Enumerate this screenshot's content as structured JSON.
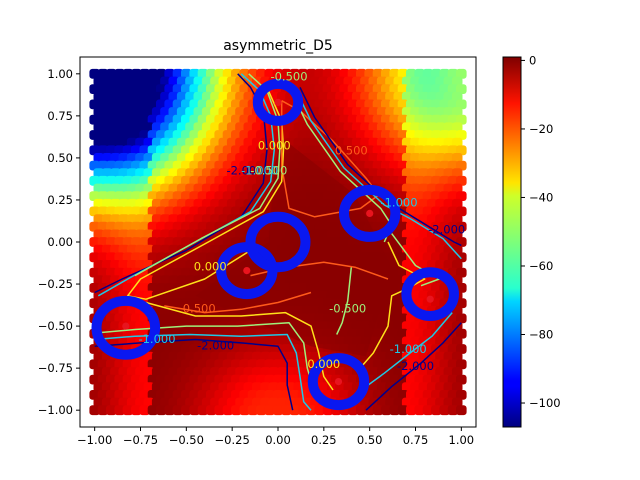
{
  "chart_data": {
    "type": "heatmap",
    "title": "asymmetric_D5",
    "xlabel": "",
    "ylabel": "",
    "xlim": [
      -1.08,
      1.08
    ],
    "ylim": [
      -1.1,
      1.1
    ],
    "x_ticks": [
      -1.0,
      -0.75,
      -0.5,
      -0.25,
      0.0,
      0.25,
      0.5,
      0.75,
      1.0
    ],
    "x_tick_labels": [
      "−1.00",
      "−0.75",
      "−0.50",
      "−0.25",
      "0.00",
      "0.25",
      "0.50",
      "0.75",
      "1.00"
    ],
    "y_ticks": [
      1.0,
      0.75,
      0.5,
      0.25,
      0.0,
      -0.25,
      -0.5,
      -0.75,
      -1.0
    ],
    "y_tick_labels": [
      "1.00",
      "0.75",
      "0.50",
      "0.25",
      "0.00",
      "−0.25",
      "−0.50",
      "−0.75",
      "−1.00"
    ],
    "grid": false,
    "colormap": "jet",
    "colorbar": {
      "range": [
        -107,
        1
      ],
      "ticks": [
        0,
        -20,
        -40,
        -60,
        -80,
        -100
      ],
      "tick_labels": [
        "0",
        "−20",
        "−40",
        "−60",
        "−80",
        "−100"
      ]
    },
    "contour_levels": [
      -2.0,
      -1.0,
      -0.5,
      0.0,
      0.5
    ],
    "contour_colors": {
      "-2.0": "#00008b",
      "-1.0": "#1fc8e6",
      "-0.5": "#9ff07a",
      "0.0": "#ffe11a",
      "0.5": "#ff5a1a"
    },
    "contour_labels": [
      {
        "text": "-2.000",
        "x": -0.18,
        "y": 0.4,
        "level": -2.0
      },
      {
        "text": "-1.000",
        "x": -0.1,
        "y": 0.4,
        "level": -1.0
      },
      {
        "text": "-0.500",
        "x": -0.05,
        "y": 0.4,
        "level": -0.5
      },
      {
        "text": "0.000",
        "x": -0.02,
        "y": 0.55,
        "level": 0.0
      },
      {
        "text": "-0.500",
        "x": 0.06,
        "y": 0.96,
        "level": -0.5
      },
      {
        "text": "0.500",
        "x": 0.4,
        "y": 0.52,
        "level": 0.5
      },
      {
        "text": "-1.000",
        "x": 0.66,
        "y": 0.21,
        "level": -1.0
      },
      {
        "text": "-2.000",
        "x": 0.92,
        "y": 0.05,
        "level": -2.0
      },
      {
        "text": "0.000",
        "x": -0.37,
        "y": -0.17,
        "level": 0.0
      },
      {
        "text": "0.500",
        "x": -0.43,
        "y": -0.42,
        "level": 0.5
      },
      {
        "text": "-1.000",
        "x": -0.66,
        "y": -0.6,
        "level": -1.0
      },
      {
        "text": "-2.000",
        "x": -0.34,
        "y": -0.64,
        "level": -2.0
      },
      {
        "text": "-0.500",
        "x": 0.38,
        "y": -0.42,
        "level": -0.5
      },
      {
        "text": "0.000",
        "x": 0.25,
        "y": -0.75,
        "level": 0.0
      },
      {
        "text": "-1.000",
        "x": 0.71,
        "y": -0.66,
        "level": -1.0
      },
      {
        "text": "-2.000",
        "x": 0.75,
        "y": -0.76,
        "level": -2.0
      }
    ],
    "markers": [
      {
        "x": 0.0,
        "y": 0.83
      },
      {
        "x": 0.5,
        "y": 0.17
      },
      {
        "x": 0.83,
        "y": -0.34
      },
      {
        "x": 0.33,
        "y": -0.83
      },
      {
        "x": -0.17,
        "y": -0.17
      },
      {
        "x": -0.83,
        "y": -0.5
      }
    ],
    "rings": [
      {
        "x": 0.0,
        "y": 0.83,
        "r": 0.11
      },
      {
        "x": 0.5,
        "y": 0.17,
        "r": 0.14
      },
      {
        "x": 0.83,
        "y": -0.31,
        "r": 0.13
      },
      {
        "x": 0.33,
        "y": -0.83,
        "r": 0.14
      },
      {
        "x": -0.17,
        "y": -0.17,
        "r": 0.14
      },
      {
        "x": -0.83,
        "y": -0.51,
        "r": 0.16
      },
      {
        "x": 0.0,
        "y": 0.0,
        "r": 0.15
      }
    ]
  }
}
